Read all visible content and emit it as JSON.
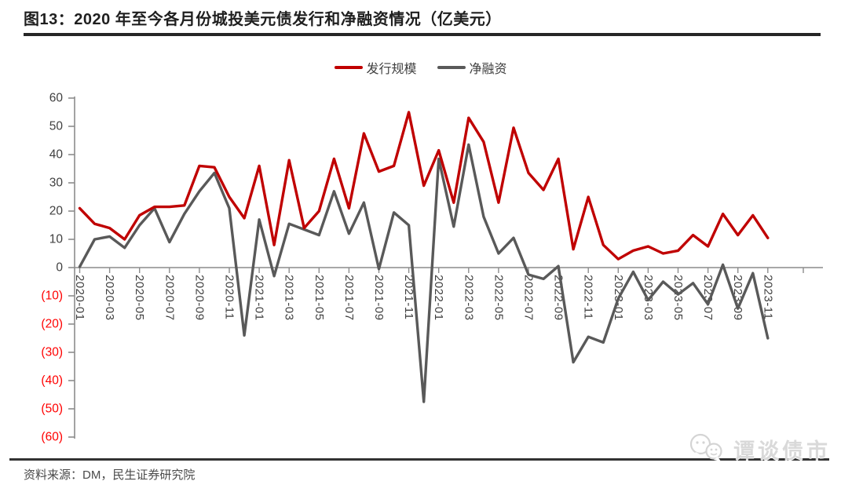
{
  "header": {
    "title": "图13：2020 年至今各月份城投美元债发行和净融资情况（亿美元）"
  },
  "footer": {
    "source": "资料来源：DM，民生证券研究院"
  },
  "watermark": {
    "text": "谭谈债市",
    "icon": "chat-bubbles-icon",
    "color": "#d9d9d9"
  },
  "chart_data": {
    "type": "line",
    "title": "2020 年至今各月份城投美元债发行和净融资情况（亿美元）",
    "xlabel": "",
    "ylabel": "",
    "ylim": [
      -60,
      60
    ],
    "y_step": 10,
    "grid": "off",
    "legend_position": "top-center",
    "x_tick_interval": 2,
    "y_tick_labels": [
      "60",
      "50",
      "40",
      "30",
      "20",
      "10",
      "0",
      "(10)",
      "(20)",
      "(30)",
      "(40)",
      "(50)",
      "(60)"
    ],
    "negative_label_format": "parentheses",
    "negative_label_color": "#ff0000",
    "axis_label_color": "#404040",
    "axis_line_color": "#8c8c8c",
    "categories": [
      "2020-01",
      "2020-02",
      "2020-03",
      "2020-04",
      "2020-05",
      "2020-06",
      "2020-07",
      "2020-08",
      "2020-09",
      "2020-10",
      "2020-11",
      "2020-12",
      "2021-01",
      "2021-02",
      "2021-03",
      "2021-04",
      "2021-05",
      "2021-06",
      "2021-07",
      "2021-08",
      "2021-09",
      "2021-10",
      "2021-11",
      "2021-12",
      "2022-01",
      "2022-02",
      "2022-03",
      "2022-04",
      "2022-05",
      "2022-06",
      "2022-07",
      "2022-08",
      "2022-09",
      "2022-10",
      "2022-11",
      "2022-12",
      "2023-01",
      "2023-02",
      "2023-03",
      "2023-04",
      "2023-05",
      "2023-06",
      "2023-07",
      "2023-08",
      "2023-09",
      "2023-10",
      "2023-11"
    ],
    "series": [
      {
        "name": "发行规模",
        "color": "#c00000",
        "values": [
          21,
          15.5,
          14,
          10,
          18.5,
          21.5,
          21.5,
          22,
          36,
          35.5,
          25,
          17.5,
          36,
          8,
          38,
          14,
          20,
          38.5,
          21,
          47.5,
          34,
          36,
          55,
          29,
          41.5,
          23,
          53,
          44.5,
          23,
          49.5,
          33.5,
          27.5,
          38.5,
          6.5,
          25,
          8,
          3,
          6,
          7.5,
          5,
          6,
          11.5,
          7.5,
          19,
          11.5,
          18.5,
          10.5
        ]
      },
      {
        "name": "净融资",
        "color": "#595959",
        "values": [
          0.3,
          10,
          11,
          7,
          15,
          21,
          9,
          19,
          27,
          33.5,
          21,
          -24,
          17,
          -3,
          15.5,
          13.5,
          11.5,
          27,
          12,
          23,
          -0.5,
          19.5,
          15,
          -47.5,
          38.5,
          14.5,
          43.5,
          18,
          5,
          10.5,
          -2.5,
          -4,
          0.5,
          -33.5,
          -24.5,
          -26.5,
          -11,
          -1.5,
          -11.5,
          -5,
          -9.5,
          -5.5,
          -13,
          1,
          -14.5,
          -2,
          -25
        ]
      }
    ]
  }
}
